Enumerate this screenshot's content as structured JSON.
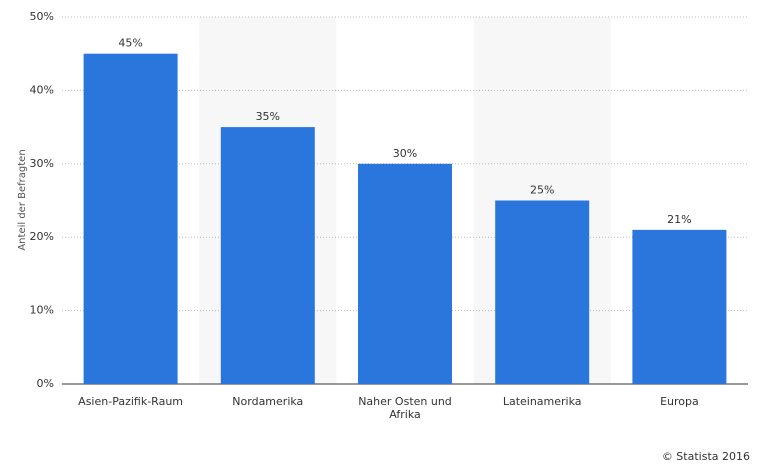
{
  "chart_data": {
    "type": "bar",
    "y_label": "Anteil der Befragten",
    "credit": "© Statista 2016",
    "categories": [
      "Asien-Pazifik-Raum",
      "Nordamerika",
      "Naher Osten und Afrika",
      "Lateinamerika",
      "Europa"
    ],
    "values": [
      45,
      35,
      30,
      25,
      21
    ],
    "value_labels": [
      "45%",
      "35%",
      "30%",
      "25%",
      "21%"
    ],
    "color": "#2a76dd",
    "ylim": [
      0,
      50
    ],
    "yticks": [
      {
        "value": 0,
        "label": "0%"
      },
      {
        "value": 10,
        "label": "10%"
      },
      {
        "value": 20,
        "label": "20%"
      },
      {
        "value": 30,
        "label": "30%"
      },
      {
        "value": 40,
        "label": "40%"
      },
      {
        "value": 50,
        "label": "50%"
      }
    ],
    "grid": true
  }
}
